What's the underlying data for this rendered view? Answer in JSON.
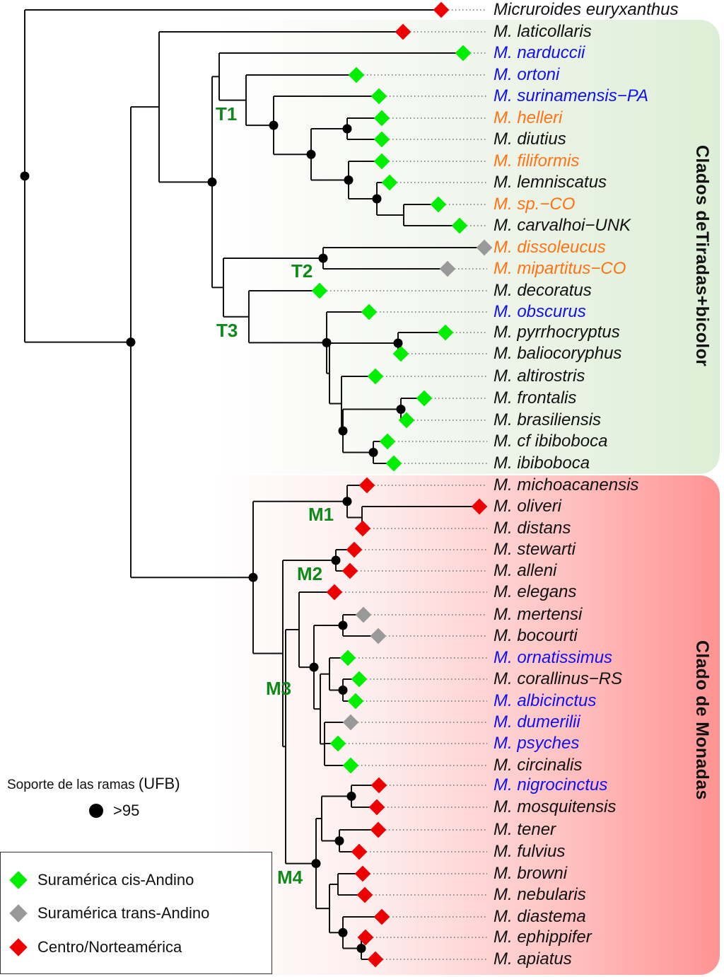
{
  "colors": {
    "cis_andino": "#00ee00",
    "trans_andino": "#999999",
    "centro_norteamerica": "#ee0000",
    "label_black": "#111111",
    "label_blue": "#1010ee",
    "label_orange": "#ff7314",
    "clade_tag": "#0f8a1a"
  },
  "clades": {
    "upper_title": "Clados deTiradas+bicolor",
    "lower_title": "Clado de Monadas"
  },
  "node_tags": [
    "T1",
    "T2",
    "T3",
    "M1",
    "M2",
    "M3",
    "M4"
  ],
  "tips": [
    {
      "name": "Micruroides euryxanthus",
      "color": "black",
      "region": "centro_norteamerica"
    },
    {
      "name": "M. laticollaris",
      "color": "black",
      "region": "centro_norteamerica"
    },
    {
      "name": "M. narduccii",
      "color": "blue",
      "region": "cis_andino"
    },
    {
      "name": "M. ortoni",
      "color": "blue",
      "region": "cis_andino"
    },
    {
      "name": "M. surinamensis−PA",
      "color": "blue",
      "region": "cis_andino"
    },
    {
      "name": "M. helleri",
      "color": "orange",
      "region": "cis_andino"
    },
    {
      "name": "M. diutius",
      "color": "black",
      "region": "cis_andino"
    },
    {
      "name": "M. filiformis",
      "color": "orange",
      "region": "cis_andino"
    },
    {
      "name": "M. lemniscatus",
      "color": "black",
      "region": "cis_andino"
    },
    {
      "name": "M. sp.−CO",
      "color": "orange",
      "region": "cis_andino"
    },
    {
      "name": "M. carvalhoi−UNK",
      "color": "black",
      "region": "cis_andino"
    },
    {
      "name": "M. dissoleucus",
      "color": "orange",
      "region": "trans_andino"
    },
    {
      "name": "M. mipartitus−CO",
      "color": "orange",
      "region": "trans_andino"
    },
    {
      "name": "M. decoratus",
      "color": "black",
      "region": "cis_andino"
    },
    {
      "name": "M. obscurus",
      "color": "blue",
      "region": "cis_andino"
    },
    {
      "name": "M. pyrrhocryptus",
      "color": "black",
      "region": "cis_andino"
    },
    {
      "name": "M. baliocoryphus",
      "color": "black",
      "region": "cis_andino"
    },
    {
      "name": "M. altirostris",
      "color": "black",
      "region": "cis_andino"
    },
    {
      "name": "M. frontalis",
      "color": "black",
      "region": "cis_andino"
    },
    {
      "name": "M. brasiliensis",
      "color": "black",
      "region": "cis_andino"
    },
    {
      "name": "M. cf ibiboboca",
      "color": "black",
      "region": "cis_andino"
    },
    {
      "name": "M. ibiboboca",
      "color": "black",
      "region": "cis_andino"
    },
    {
      "name": "M. michoacanensis",
      "color": "black",
      "region": "centro_norteamerica"
    },
    {
      "name": "M. oliveri",
      "color": "black",
      "region": "centro_norteamerica"
    },
    {
      "name": "M. distans",
      "color": "black",
      "region": "centro_norteamerica"
    },
    {
      "name": "M. stewarti",
      "color": "black",
      "region": "centro_norteamerica"
    },
    {
      "name": "M. alleni",
      "color": "black",
      "region": "centro_norteamerica"
    },
    {
      "name": "M. elegans",
      "color": "black",
      "region": "centro_norteamerica"
    },
    {
      "name": "M. mertensi",
      "color": "black",
      "region": "trans_andino"
    },
    {
      "name": "M. bocourti",
      "color": "black",
      "region": "trans_andino"
    },
    {
      "name": "M. ornatissimus",
      "color": "blue",
      "region": "cis_andino"
    },
    {
      "name": "M. corallinus−RS",
      "color": "black",
      "region": "cis_andino"
    },
    {
      "name": "M. albicinctus",
      "color": "blue",
      "region": "cis_andino"
    },
    {
      "name": "M. dumerilii",
      "color": "blue",
      "region": "trans_andino"
    },
    {
      "name": "M. psyches",
      "color": "blue",
      "region": "cis_andino"
    },
    {
      "name": "M. circinalis",
      "color": "black",
      "region": "cis_andino"
    },
    {
      "name": "M. nigrocinctus",
      "color": "blue",
      "region": "centro_norteamerica"
    },
    {
      "name": "M. mosquitensis",
      "color": "black",
      "region": "centro_norteamerica"
    },
    {
      "name": "M. tener",
      "color": "black",
      "region": "centro_norteamerica"
    },
    {
      "name": "M. fulvius",
      "color": "black",
      "region": "centro_norteamerica"
    },
    {
      "name": "M. browni",
      "color": "black",
      "region": "centro_norteamerica"
    },
    {
      "name": "M. nebularis",
      "color": "black",
      "region": "centro_norteamerica"
    },
    {
      "name": "M. diastema",
      "color": "black",
      "region": "centro_norteamerica"
    },
    {
      "name": "M. ephippifer",
      "color": "black",
      "region": "centro_norteamerica"
    },
    {
      "name": "M. apiatus",
      "color": "black",
      "region": "centro_norteamerica"
    }
  ],
  "tree_newick": "(Micruroides euryxanthus,((M. laticollaris,((M. narduccii,(M. ortoni,(M. surinamensis-PA,((M. helleri,M. diutius)*,(M. filiformis,(M. lemniscatus,(M. sp.-CO,M. carvalhoi-UNK))*)*)*)*)T1,((M. dissoleucus,M. mipartitus-CO)T2*,(M. decoratus,(M. obscurus,((M. pyrrhocryptus,M. baliocoryphus)*,(M. altirostris,((M. frontalis,M. brasiliensis)*,(M. cf ibiboboca,M. ibiboboca)*)*)))*)T3))*)*,(((M. michoacanensis,(M. oliveri,M. distans))M1*,((M. stewarti,M. alleni)M2*,(M. elegans,(((M. mertensi,M. bocourti)*,((M. ornatissimus,(M. corallinus-RS,M. albicinctus)*),(M. dumerilii,M. psyches,M. circinalis)))*)M3,(((M. nigrocinctus,M. mosquitensis)*,(M. tener,M. fulvius)*),((M. browni,M. nebularis),(M. diastema,(M. ephippifer,M. apiatus)*)*))M4*)))*)*)*;",
  "support_legend": {
    "title": "Soporte de las ramas",
    "unit": "(UFB)",
    "item_label": ">95"
  },
  "region_legend": [
    {
      "key": "cis_andino",
      "label": "Suramérica cis-Andino"
    },
    {
      "key": "trans_andino",
      "label": "Suramérica trans-Andino"
    },
    {
      "key": "centro_norteamerica",
      "label": "Centro/Norteamérica"
    }
  ]
}
